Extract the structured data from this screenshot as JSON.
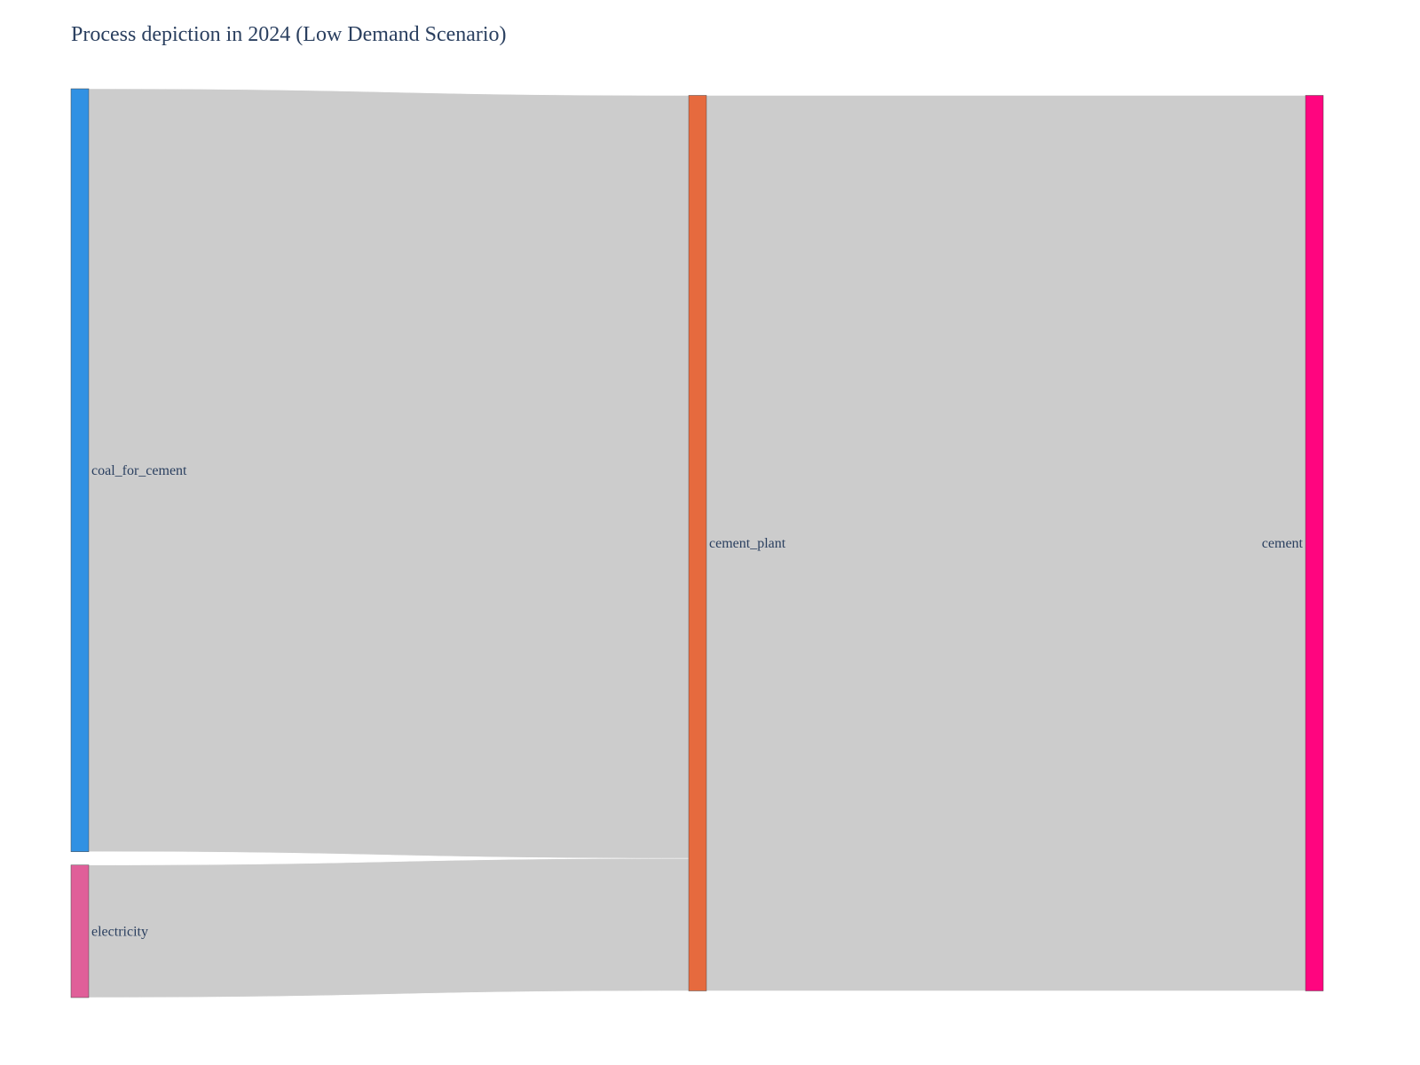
{
  "chart_data": {
    "type": "sankey",
    "title": "Process depiction in 2024 (Low Demand Scenario)",
    "nodes": [
      {
        "id": "coal_for_cement",
        "label": "coal_for_cement",
        "color": "#3191e3",
        "column": 0
      },
      {
        "id": "electricity",
        "label": "electricity",
        "color": "#e05f99",
        "column": 0
      },
      {
        "id": "cement_plant",
        "label": "cement_plant",
        "color": "#e66a3e",
        "column": 1
      },
      {
        "id": "cement",
        "label": "cement",
        "color": "#ff057f",
        "column": 2
      }
    ],
    "links": [
      {
        "source": "coal_for_cement",
        "target": "cement_plant",
        "value": 85.2
      },
      {
        "source": "electricity",
        "target": "cement_plant",
        "value": 14.8
      },
      {
        "source": "cement_plant",
        "target": "cement",
        "value": 100
      }
    ],
    "link_color": "#cccccc"
  }
}
